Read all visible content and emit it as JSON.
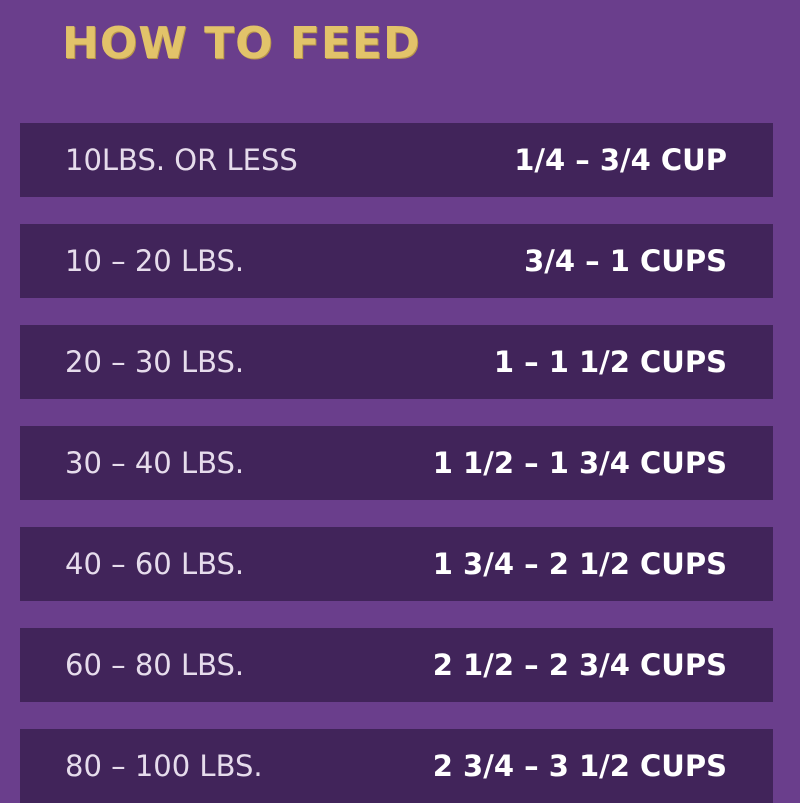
{
  "header": {
    "title": "HOW TO FEED"
  },
  "table": {
    "rows": [
      [
        "10LBS. OR LESS",
        "1/4 – 3/4 CUP"
      ],
      [
        "10 – 20 LBS.",
        "3/4 – 1 CUPS"
      ],
      [
        "20 – 30 LBS.",
        "1 – 1 1/2 CUPS"
      ],
      [
        "30 – 40 LBS.",
        "1 1/2 – 1 3/4 CUPS"
      ],
      [
        "40 – 60 LBS.",
        "1 3/4 – 2 1/2 CUPS"
      ],
      [
        "60 – 80 LBS.",
        "2 1/2 – 2 3/4 CUPS"
      ],
      [
        "80 – 100 LBS.",
        "2 3/4 – 3 1/2 CUPS"
      ]
    ]
  }
}
